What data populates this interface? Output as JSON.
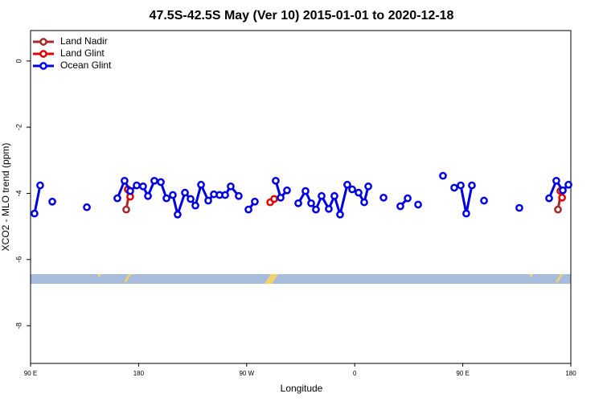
{
  "chart_data": {
    "type": "line",
    "title": "47.5S-42.5S May (Ver 10)   2015-01-01 to 2020-12-18",
    "x_label": "Longitude",
    "y_label": "XCO2 - MLO trend (ppm)",
    "xlim": [
      90,
      540
    ],
    "xticks": [
      {
        "value": 90,
        "label": "90 E"
      },
      {
        "value": 180,
        "label": "180"
      },
      {
        "value": 270,
        "label": "90 W"
      },
      {
        "value": 360,
        "label": "0"
      },
      {
        "value": 450,
        "label": "90 E"
      },
      {
        "value": 540,
        "label": "180"
      }
    ],
    "ylim": [
      -9.14,
      0.92
    ],
    "yticks": [
      0,
      -2,
      -4,
      -6,
      -8
    ],
    "legend": "top-left",
    "series": [
      {
        "name": "Land Nadir",
        "color": "#a52a2a",
        "x": [
          169.7,
          172.4,
          null,
          529.3,
          532.0
        ],
        "values": [
          -4.49,
          -3.93,
          null,
          -4.49,
          -3.93
        ]
      },
      {
        "name": "Land Glint",
        "color": "#e00000",
        "x": [
          171.0,
          173.0,
          null,
          289.6,
          292.9,
          null,
          531.3,
          532.7
        ],
        "values": [
          -3.88,
          -4.1,
          null,
          -4.27,
          -4.17,
          null,
          -3.93,
          -4.13
        ]
      },
      {
        "name": "Ocean Glint",
        "color": "#0000e0",
        "x": [
          93.3,
          98.0,
          null,
          108.1,
          null,
          136.9,
          null,
          162.3,
          168.3,
          173.0,
          178.4,
          183.7,
          187.8,
          193.1,
          198.5,
          203.2,
          208.5,
          212.5,
          218.6,
          223.3,
          227.3,
          232.0,
          238.0,
          242.7,
          247.4,
          252.1,
          256.7,
          263.4,
          null,
          271.5,
          276.8,
          null,
          294.2,
          298.3,
          303.6,
          null,
          313.0,
          319.0,
          323.7,
          327.7,
          332.4,
          338.4,
          343.1,
          347.8,
          353.8,
          357.9,
          363.2,
          367.9,
          371.3,
          null,
          384.0,
          null,
          398.0,
          404.1,
          null,
          412.8,
          null,
          433.5,
          null,
          442.9,
          448.3,
          452.9,
          457.6,
          null,
          467.7,
          null,
          497.1,
          null,
          521.9,
          527.9,
          533.3,
          538.0
        ],
        "values": [
          -4.61,
          -3.76,
          null,
          -4.25,
          null,
          -4.42,
          null,
          -4.15,
          -3.62,
          -3.93,
          -3.76,
          -3.79,
          -4.08,
          -3.62,
          -3.66,
          -4.15,
          -4.05,
          -4.64,
          -3.98,
          -4.17,
          -4.37,
          -3.74,
          -4.22,
          -4.03,
          -4.05,
          -4.05,
          -3.79,
          -4.08,
          null,
          -4.49,
          -4.25,
          null,
          -3.62,
          -4.13,
          -3.91,
          null,
          -4.3,
          -3.93,
          -4.3,
          -4.49,
          -4.08,
          -4.47,
          -4.08,
          -4.64,
          -3.74,
          -3.88,
          -3.98,
          -4.27,
          -3.79,
          null,
          -4.13,
          null,
          -4.39,
          -4.15,
          null,
          -4.34,
          null,
          -3.47,
          null,
          -3.83,
          -3.76,
          -4.61,
          -3.76,
          null,
          -4.22,
          null,
          -4.44,
          null,
          -4.15,
          -3.62,
          -3.91,
          -3.74
        ]
      }
    ]
  }
}
